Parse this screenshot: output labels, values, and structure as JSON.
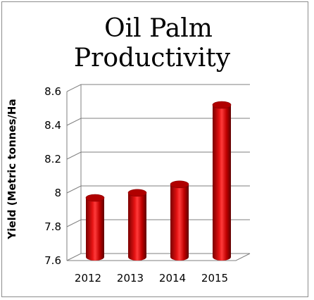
{
  "chart_data": {
    "type": "bar",
    "title_lines": [
      "Oil Palm",
      "Productivity"
    ],
    "ylabel": "Yield (Metric tonnes/Ha",
    "xlabel": "",
    "categories": [
      "2012",
      "2013",
      "2014",
      "2015"
    ],
    "values": [
      7.95,
      7.98,
      8.03,
      8.5
    ],
    "ylim": [
      7.6,
      8.6
    ],
    "yticks": [
      "7.6",
      "7.8",
      "8",
      "8.2",
      "8.4",
      "8.6"
    ],
    "grid": true,
    "legend": "none",
    "style": "3d-cylinder",
    "bar_color": "#c00000"
  }
}
